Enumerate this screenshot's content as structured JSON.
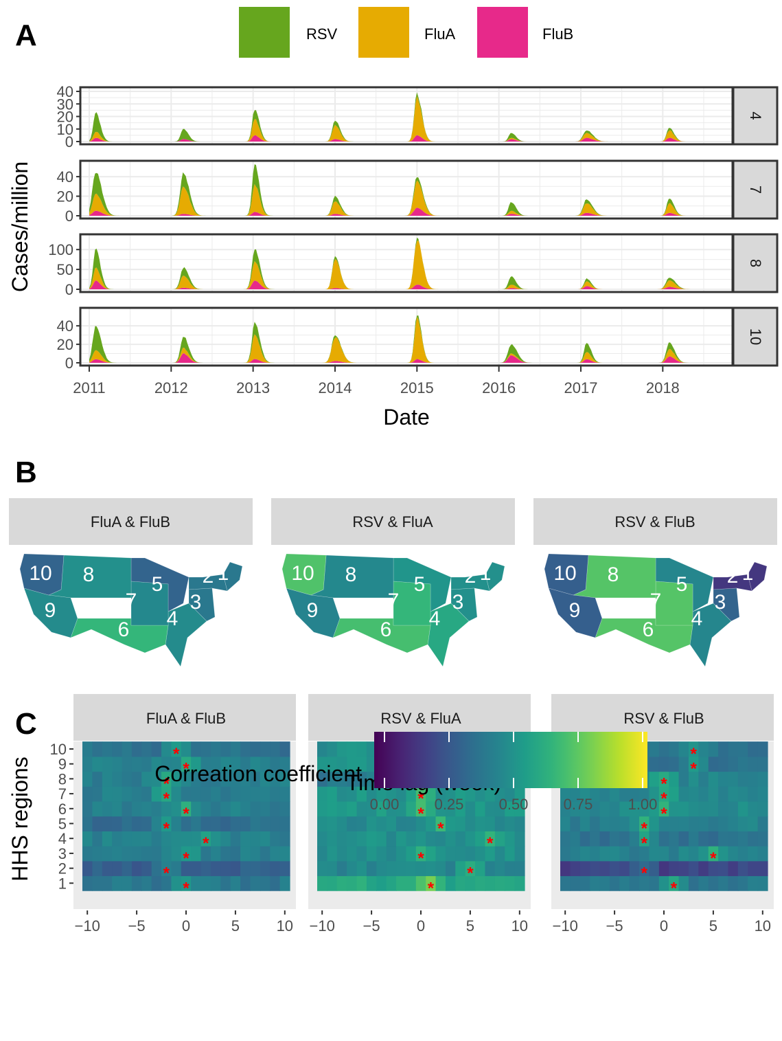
{
  "panel_labels": [
    "A",
    "B",
    "C"
  ],
  "colors": {
    "RSV": "#66a61e",
    "FluA": "#e6ab02",
    "FluB": "#e7298a",
    "star": "#ff0000",
    "strip_bg": "#d9d9d9",
    "grid": "#ebebeb"
  },
  "chart_data": [
    {
      "type": "area",
      "stacked": true,
      "legend": {
        "position": "top",
        "entries": [
          "RSV",
          "FluA",
          "FluB"
        ]
      },
      "xlabel": "Date",
      "ylabel": "Cases/million",
      "x_ticks": [
        "2011",
        "2012",
        "2013",
        "2014",
        "2015",
        "2016",
        "2017",
        "2018"
      ],
      "xlim": [
        2010.95,
        2018.5
      ],
      "grid": true,
      "season_peaks": [
        2011.08,
        2012.15,
        2013.02,
        2014.0,
        2015.0,
        2016.15,
        2017.07,
        2018.08
      ],
      "facets": [
        {
          "strip": "4",
          "ylim": [
            0,
            40
          ],
          "y_ticks": [
            "0",
            "10",
            "20",
            "30",
            "40"
          ],
          "series": [
            {
              "name": "FluB",
              "peaks": [
                3,
                2,
                5,
                2,
                5,
                2,
                3,
                3
              ]
            },
            {
              "name": "FluA",
              "peaks": [
                8,
                2,
                18,
                13,
                35,
                3,
                7,
                9
              ]
            },
            {
              "name": "RSV",
              "peaks": [
                23,
                10,
                26,
                17,
                38,
                7,
                9,
                11
              ]
            }
          ]
        },
        {
          "strip": "7",
          "ylim": [
            0,
            52
          ],
          "y_ticks": [
            "0",
            "20",
            "40"
          ],
          "series": [
            {
              "name": "FluB",
              "peaks": [
                5,
                2,
                4,
                2,
                8,
                2,
                3,
                3
              ]
            },
            {
              "name": "FluA",
              "peaks": [
                22,
                30,
                32,
                15,
                35,
                5,
                13,
                13
              ]
            },
            {
              "name": "RSV",
              "peaks": [
                45,
                44,
                52,
                20,
                40,
                14,
                17,
                18
              ]
            }
          ]
        },
        {
          "strip": "8",
          "ylim": [
            0,
            128
          ],
          "y_ticks": [
            "0",
            "50",
            "100"
          ],
          "series": [
            {
              "name": "FluB",
              "peaks": [
                22,
                4,
                22,
                3,
                12,
                3,
                8,
                6
              ]
            },
            {
              "name": "FluA",
              "peaks": [
                55,
                35,
                70,
                78,
                125,
                12,
                20,
                22
              ]
            },
            {
              "name": "RSV",
              "peaks": [
                100,
                55,
                100,
                82,
                127,
                33,
                27,
                30
              ]
            }
          ]
        },
        {
          "strip": "10",
          "ylim": [
            0,
            55
          ],
          "y_ticks": [
            "0",
            "20",
            "40"
          ],
          "series": [
            {
              "name": "FluB",
              "peaks": [
                4,
                10,
                4,
                2,
                4,
                8,
                4,
                7
              ]
            },
            {
              "name": "FluA",
              "peaks": [
                14,
                16,
                30,
                28,
                48,
                10,
                12,
                15
              ]
            },
            {
              "name": "RSV",
              "peaks": [
                41,
                29,
                43,
                30,
                53,
                20,
                22,
                22
              ]
            }
          ]
        }
      ]
    },
    {
      "type": "heatmap",
      "subtype": "choropleth",
      "facets": [
        {
          "strip": "FluA & FluB",
          "regions": {
            "1": 0.4,
            "2": 0.4,
            "3": 0.4,
            "4": 0.48,
            "5": 0.32,
            "6": 0.66,
            "7": 0.47,
            "8": 0.5,
            "9": 0.48,
            "10": 0.32
          }
        },
        {
          "strip": "RSV & FluA",
          "regions": {
            "1": 0.5,
            "2": 0.5,
            "3": 0.5,
            "4": 0.6,
            "5": 0.52,
            "6": 0.7,
            "7": 0.66,
            "8": 0.47,
            "9": 0.45,
            "10": 0.72
          }
        },
        {
          "strip": "RSV & FluB",
          "regions": {
            "1": 0.16,
            "2": 0.16,
            "3": 0.32,
            "4": 0.46,
            "5": 0.46,
            "6": 0.73,
            "7": 0.73,
            "8": 0.73,
            "9": 0.3,
            "10": 0.3
          }
        }
      ],
      "region_labels": [
        "1",
        "2",
        "3",
        "4",
        "5",
        "6",
        "7",
        "8",
        "9",
        "10"
      ]
    },
    {
      "type": "heatmap",
      "xlabel": "Time lag (week)",
      "ylabel": "HHS regions",
      "x_ticks": [
        "-10",
        "-5",
        "0",
        "5",
        "10"
      ],
      "y_ticks": [
        "1",
        "2",
        "3",
        "4",
        "5",
        "6",
        "7",
        "8",
        "9",
        "10"
      ],
      "lag_range": [
        -10,
        10
      ],
      "colorbar": {
        "title": "Correation coefficient",
        "range": [
          0,
          1
        ],
        "ticks": [
          "0.00",
          "0.25",
          "0.50",
          "0.75",
          "1.00"
        ]
      },
      "facets": [
        {
          "strip": "FluA & FluB",
          "base": [
            0.4,
            0.3,
            0.42,
            0.44,
            0.36,
            0.43,
            0.43,
            0.43,
            0.43,
            0.38
          ],
          "stars": {
            "1": 0,
            "2": -2,
            "3": 0,
            "4": 2,
            "5": -2,
            "6": 0,
            "7": -2,
            "8": -2,
            "9": 0,
            "10": -1
          }
        },
        {
          "strip": "RSV & FluA",
          "base": [
            0.6,
            0.46,
            0.5,
            0.5,
            0.48,
            0.53,
            0.52,
            0.4,
            0.5,
            0.5
          ],
          "stars": {
            "1": 1,
            "2": 5,
            "3": 0,
            "4": 7,
            "5": 2,
            "6": 0,
            "7": 0,
            "8": 0,
            "9": -2,
            "10": 0
          }
        },
        {
          "strip": "RSV & FluB",
          "base": [
            0.4,
            0.2,
            0.44,
            0.38,
            0.44,
            0.48,
            0.46,
            0.46,
            0.36,
            0.38
          ],
          "stars": {
            "1": 1,
            "2": -2,
            "3": 5,
            "4": -2,
            "5": -2,
            "6": 0,
            "7": 0,
            "8": 0,
            "9": 3,
            "10": 3
          }
        }
      ]
    }
  ]
}
